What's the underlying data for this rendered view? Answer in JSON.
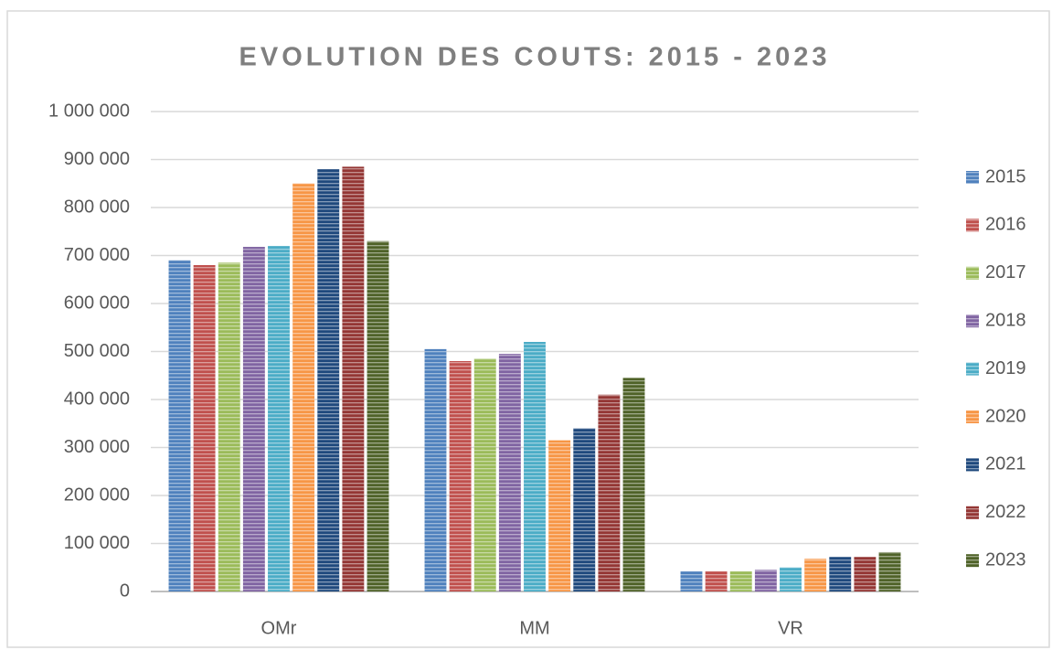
{
  "chart_data": {
    "type": "bar",
    "title": "EVOLUTION DES COUTS: 2015 - 2023",
    "categories": [
      "OMr",
      "MM",
      "VR"
    ],
    "series": [
      {
        "name": "2015",
        "color": "#4f81bd",
        "values": [
          690000,
          505000,
          42000
        ]
      },
      {
        "name": "2016",
        "color": "#c0504d",
        "values": [
          680000,
          480000,
          42000
        ]
      },
      {
        "name": "2017",
        "color": "#9bbb59",
        "values": [
          685000,
          485000,
          42000
        ]
      },
      {
        "name": "2018",
        "color": "#8064a2",
        "values": [
          718000,
          495000,
          45000
        ]
      },
      {
        "name": "2019",
        "color": "#4bacc6",
        "values": [
          720000,
          520000,
          50000
        ]
      },
      {
        "name": "2020",
        "color": "#f79646",
        "values": [
          850000,
          315000,
          68000
        ]
      },
      {
        "name": "2021",
        "color": "#1f497d",
        "values": [
          880000,
          340000,
          72000
        ]
      },
      {
        "name": "2022",
        "color": "#943634",
        "values": [
          885000,
          410000,
          72000
        ]
      },
      {
        "name": "2023",
        "color": "#4f6228",
        "values": [
          730000,
          445000,
          82000
        ]
      }
    ],
    "ylim": [
      0,
      1000000
    ],
    "yticks": [
      0,
      {
        "value": 100000,
        "label": "100 000"
      },
      {
        "value": 200000,
        "label": "200 000"
      },
      {
        "value": 300000,
        "label": "300 000"
      },
      {
        "value": 400000,
        "label": "400 000"
      },
      {
        "value": 500000,
        "label": "500 000"
      },
      {
        "value": 600000,
        "label": "600 000"
      },
      {
        "value": 700000,
        "label": "700 000"
      },
      {
        "value": 800000,
        "label": "800 000"
      },
      {
        "value": 900000,
        "label": "900 000"
      },
      {
        "value": 1000000,
        "label": "1 000 000"
      }
    ],
    "grid": true,
    "legend": "right"
  }
}
